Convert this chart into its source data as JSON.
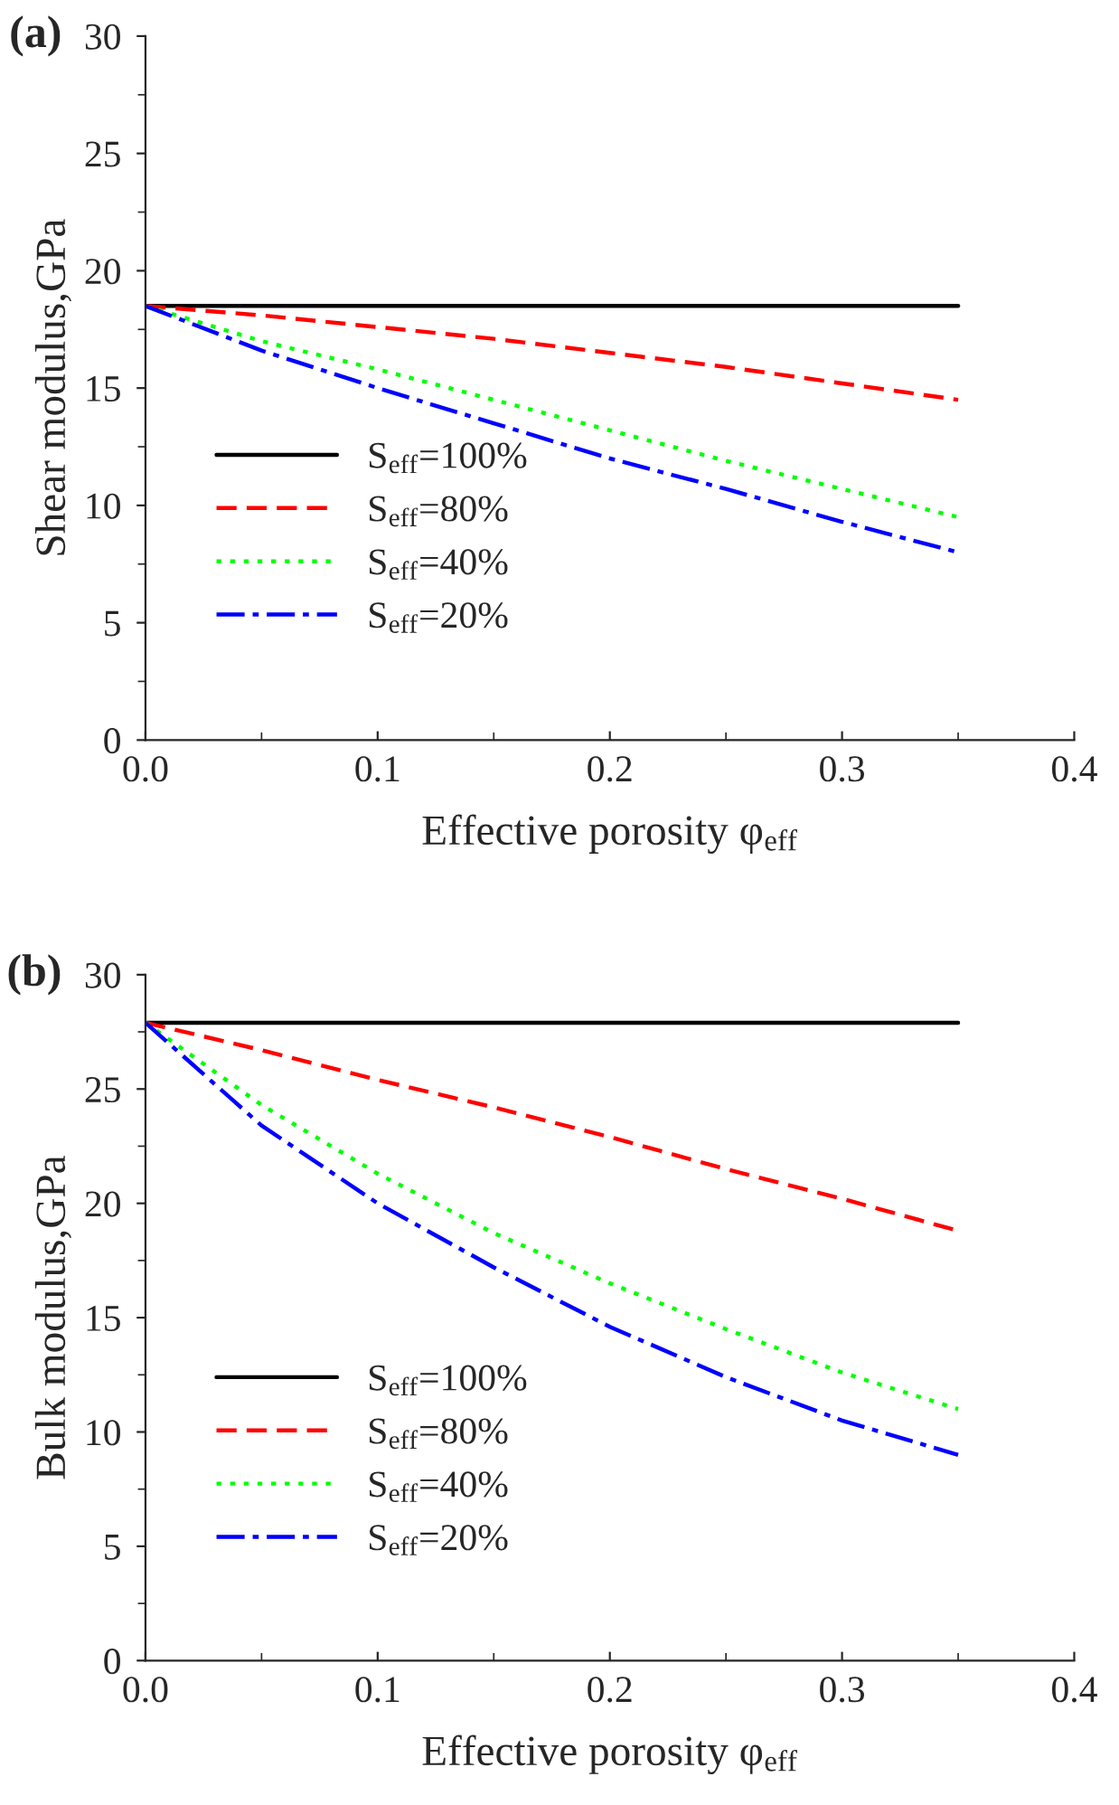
{
  "chart_data": [
    {
      "type": "line",
      "title": "(a)",
      "xlabel": "Effective porosity φ$_{eff}$",
      "ylabel": "Shear modulus,GPa",
      "x": [
        0,
        0.05,
        0.1,
        0.15,
        0.2,
        0.25,
        0.3,
        0.35
      ],
      "xlim": [
        0,
        0.4
      ],
      "xticks": [
        {
          "value": 0,
          "label": "0.0"
        },
        0.1,
        0.2,
        0.3,
        0.4
      ],
      "ylim": [
        0,
        30
      ],
      "yticks": [
        0,
        5,
        10,
        15,
        20,
        25,
        30
      ],
      "grid": false,
      "legend": "bottom left",
      "marker": "none",
      "series": [
        {
          "name": "S$_{eff}$=100%",
          "color": "#000000",
          "line_style": "solid",
          "values": [
            18.5,
            18.5,
            18.5,
            18.5,
            18.5,
            18.5,
            18.5,
            18.5
          ]
        },
        {
          "name": "S$_{eff}$=80%",
          "color": "#ff0000",
          "line_style": "dashed",
          "values": [
            18.5,
            18.1,
            17.6,
            17.1,
            16.5,
            15.9,
            15.2,
            14.5
          ]
        },
        {
          "name": "S$_{eff}$=40%",
          "color": "#00ff00",
          "line_style": "dotted",
          "values": [
            18.5,
            17.0,
            15.8,
            14.5,
            13.2,
            11.9,
            10.7,
            9.5
          ]
        },
        {
          "name": "S$_{eff}$=20%",
          "color": "#0000ff",
          "line_style": "dashdot",
          "values": [
            18.5,
            16.6,
            15.0,
            13.5,
            12.0,
            10.7,
            9.3,
            8.0
          ]
        }
      ]
    },
    {
      "type": "line",
      "title": "(b)",
      "xlabel": "Effective porosity φ$_{eff}$",
      "ylabel": "Bulk modulus,GPa",
      "x": [
        0,
        0.05,
        0.1,
        0.15,
        0.2,
        0.25,
        0.3,
        0.35
      ],
      "xlim": [
        0,
        0.4
      ],
      "xticks": [
        {
          "value": 0,
          "label": "0.0"
        },
        0.1,
        0.2,
        0.3,
        0.4
      ],
      "ylim": [
        0,
        30
      ],
      "yticks": [
        0,
        5,
        10,
        15,
        20,
        25,
        30
      ],
      "grid": false,
      "legend": "bottom left",
      "marker": "none",
      "series": [
        {
          "name": "S$_{eff}$=100%",
          "color": "#000000",
          "line_style": "solid",
          "values": [
            27.9,
            27.9,
            27.9,
            27.9,
            27.9,
            27.9,
            27.9,
            27.9
          ]
        },
        {
          "name": "S$_{eff}$=80%",
          "color": "#ff0000",
          "line_style": "dashed",
          "values": [
            27.9,
            26.7,
            25.4,
            24.2,
            22.9,
            21.5,
            20.2,
            18.8
          ]
        },
        {
          "name": "S$_{eff}$=40%",
          "color": "#00ff00",
          "line_style": "dotted",
          "values": [
            27.9,
            24.3,
            21.3,
            18.7,
            16.5,
            14.5,
            12.6,
            11.0
          ]
        },
        {
          "name": "S$_{eff}$=20%",
          "color": "#0000ff",
          "line_style": "dashdot",
          "values": [
            27.9,
            23.4,
            20.0,
            17.2,
            14.6,
            12.4,
            10.5,
            9.0
          ]
        }
      ]
    }
  ]
}
